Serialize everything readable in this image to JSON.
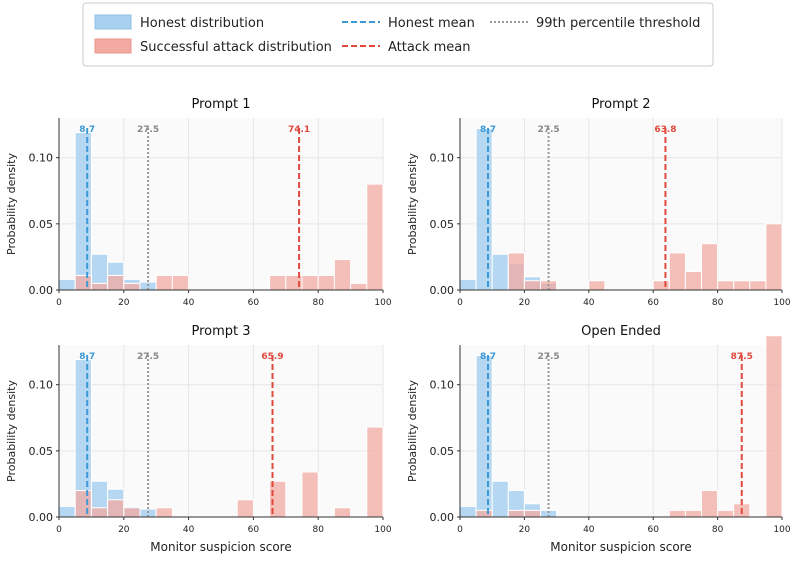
{
  "colors": {
    "honest": "#a9d0ee",
    "attack": "#f2aaa3",
    "honest_mean": "#3d9ad6",
    "attack_mean": "#e04a3c",
    "threshold": "#999999",
    "panel_bg": "#fafafa",
    "grid": "#e6e6e6"
  },
  "legend": {
    "honest_dist": "Honest distribution",
    "attack_dist": "Successful attack distribution",
    "honest_mean": "Honest mean",
    "attack_mean": "Attack mean",
    "threshold": "99th percentile threshold"
  },
  "chart_data": {
    "type": "bar",
    "bin_width": 5,
    "x_ticks": [
      0,
      20,
      40,
      60,
      80,
      100
    ],
    "y_ticks": [
      0.0,
      0.05,
      0.1
    ],
    "y_tick_labels": [
      "0.00",
      "0.05",
      "0.10"
    ],
    "x_tick_labels": [
      "0",
      "20",
      "40",
      "60",
      "80",
      "100"
    ],
    "xlim": [
      0,
      100
    ],
    "ylim": [
      0,
      0.13
    ],
    "xlabel": "Monitor suspicion score",
    "ylabel": "Probability density",
    "threshold": 27.5,
    "threshold_label": "27.5",
    "panels": [
      {
        "title": "Prompt 1",
        "honest_mean": 8.7,
        "honest_mean_label": "8.7",
        "attack_mean": 74.1,
        "attack_mean_label": "74.1",
        "honest_bins": [
          [
            0,
            0.008
          ],
          [
            5,
            0.119
          ],
          [
            10,
            0.027
          ],
          [
            15,
            0.021
          ],
          [
            20,
            0.008
          ],
          [
            25,
            0.006
          ]
        ],
        "attack_bins": [
          [
            5,
            0.011
          ],
          [
            10,
            0.005
          ],
          [
            15,
            0.011
          ],
          [
            20,
            0.005
          ],
          [
            30,
            0.011
          ],
          [
            35,
            0.011
          ],
          [
            65,
            0.011
          ],
          [
            70,
            0.011
          ],
          [
            75,
            0.011
          ],
          [
            80,
            0.011
          ],
          [
            85,
            0.023
          ],
          [
            90,
            0.005
          ],
          [
            95,
            0.08
          ]
        ]
      },
      {
        "title": "Prompt 2",
        "honest_mean": 8.7,
        "honest_mean_label": "8.7",
        "attack_mean": 63.8,
        "attack_mean_label": "63.8",
        "honest_bins": [
          [
            0,
            0.008
          ],
          [
            5,
            0.122
          ],
          [
            10,
            0.027
          ],
          [
            15,
            0.02
          ],
          [
            20,
            0.01
          ],
          [
            25,
            0.005
          ]
        ],
        "attack_bins": [
          [
            15,
            0.028
          ],
          [
            20,
            0.007
          ],
          [
            25,
            0.007
          ],
          [
            40,
            0.007
          ],
          [
            60,
            0.007
          ],
          [
            65,
            0.028
          ],
          [
            70,
            0.014
          ],
          [
            75,
            0.035
          ],
          [
            80,
            0.007
          ],
          [
            85,
            0.007
          ],
          [
            90,
            0.007
          ],
          [
            95,
            0.05
          ]
        ]
      },
      {
        "title": "Prompt 3",
        "honest_mean": 8.7,
        "honest_mean_label": "8.7",
        "attack_mean": 65.9,
        "attack_mean_label": "65.9",
        "honest_bins": [
          [
            0,
            0.008
          ],
          [
            5,
            0.119
          ],
          [
            10,
            0.027
          ],
          [
            15,
            0.021
          ],
          [
            20,
            0.008
          ],
          [
            25,
            0.006
          ]
        ],
        "attack_bins": [
          [
            5,
            0.02
          ],
          [
            10,
            0.007
          ],
          [
            15,
            0.013
          ],
          [
            20,
            0.007
          ],
          [
            30,
            0.007
          ],
          [
            55,
            0.013
          ],
          [
            65,
            0.027
          ],
          [
            75,
            0.034
          ],
          [
            85,
            0.007
          ],
          [
            95,
            0.068
          ]
        ]
      },
      {
        "title": "Open Ended",
        "honest_mean": 8.7,
        "honest_mean_label": "8.7",
        "attack_mean": 87.5,
        "attack_mean_label": "87.5",
        "honest_bins": [
          [
            0,
            0.008
          ],
          [
            5,
            0.122
          ],
          [
            10,
            0.027
          ],
          [
            15,
            0.02
          ],
          [
            20,
            0.01
          ],
          [
            25,
            0.005
          ]
        ],
        "attack_bins": [
          [
            5,
            0.005
          ],
          [
            15,
            0.005
          ],
          [
            20,
            0.005
          ],
          [
            65,
            0.005
          ],
          [
            70,
            0.005
          ],
          [
            75,
            0.02
          ],
          [
            80,
            0.005
          ],
          [
            85,
            0.01
          ],
          [
            95,
            0.137
          ]
        ]
      }
    ]
  }
}
